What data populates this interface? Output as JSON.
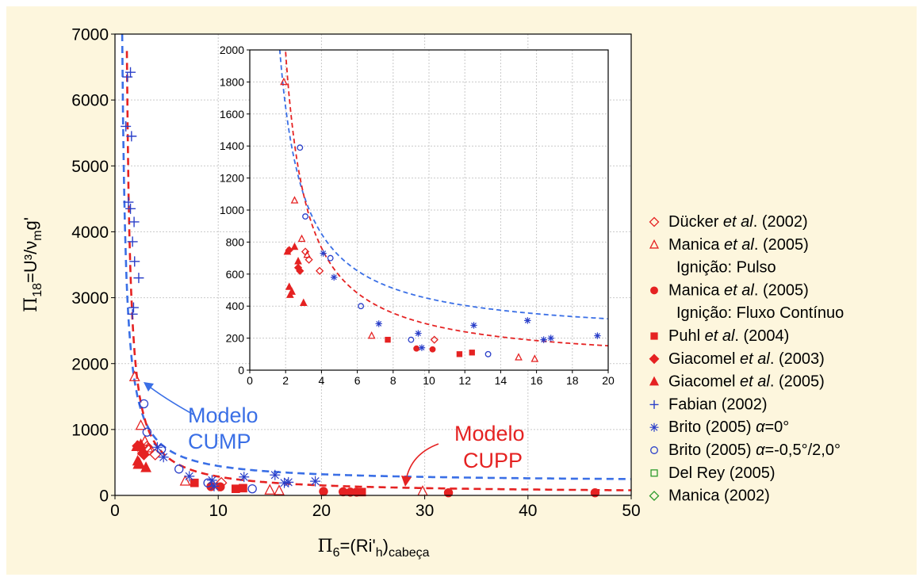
{
  "chart_data": {
    "type": "scatter",
    "main": {
      "xlim": [
        0,
        50
      ],
      "ylim": [
        0,
        7000
      ],
      "xticks": [
        "0",
        "10",
        "20",
        "30",
        "40",
        "50"
      ],
      "yticks": [
        "0",
        "1000",
        "2000",
        "3000",
        "4000",
        "5000",
        "6000",
        "7000"
      ],
      "grid": true
    },
    "inset": {
      "xlim": [
        0,
        20
      ],
      "ylim": [
        0,
        2000
      ],
      "xticks": [
        "0",
        "2",
        "4",
        "6",
        "8",
        "10",
        "12",
        "14",
        "16",
        "18",
        "20"
      ],
      "yticks": [
        "0",
        "200",
        "400",
        "600",
        "800",
        "1000",
        "1200",
        "1400",
        "1600",
        "1800",
        "2000"
      ],
      "grid": true
    },
    "ylabel": {
      "pi": "Π",
      "sub": "18",
      "eq": "=U³/ν",
      "sub2": "m",
      "tail": "g'"
    },
    "xlabel": {
      "pi": "Π",
      "sub": "6",
      "eq": "=(Ri'",
      "sub2": "h",
      "close": ")",
      "sub3": "cabeça"
    },
    "models": [
      {
        "name_line1": "Modelo",
        "name_line2": "CUMP",
        "color": "#3a6fe6",
        "a": 200,
        "k": 2380,
        "b": 0.35
      },
      {
        "name_line1": "Modelo",
        "name_line2": "CUPP",
        "color": "#e52222",
        "a": 30,
        "k": 2350,
        "b": 0.8
      }
    ],
    "legend": [
      {
        "pre": "Dücker ",
        "it": "et al",
        "post": ". (2002)",
        "marker": "diamond-open",
        "color": "#e52222"
      },
      {
        "pre": "Manica ",
        "it": "et al",
        "post": ". (2005)",
        "marker": "triangle-open",
        "color": "#e52222"
      },
      {
        "pre": "Ignição: Pulso",
        "it": "",
        "post": "",
        "marker": "none",
        "color": "#e52222"
      },
      {
        "pre": "Manica ",
        "it": "et al",
        "post": ". (2005)",
        "marker": "circle-filled",
        "color": "#e52222"
      },
      {
        "pre": "Ignição: Fluxo Contínuo",
        "it": "",
        "post": "",
        "marker": "none",
        "color": "#e52222"
      },
      {
        "pre": "Puhl ",
        "it": "et al",
        "post": ". (2004)",
        "marker": "square-filled",
        "color": "#e52222"
      },
      {
        "pre": "Giacomel ",
        "it": "et al",
        "post": ". (2003)",
        "marker": "diamond-filled",
        "color": "#e52222"
      },
      {
        "pre": "Giacomel ",
        "it": "et al",
        "post": ". (2005)",
        "marker": "triangle-filled",
        "color": "#e52222"
      },
      {
        "pre": "Fabian (2002)",
        "it": "",
        "post": "",
        "marker": "plus",
        "color": "#2a3fc9"
      },
      {
        "pre": "Brito (2005) ",
        "it": "α",
        "post": "=0°",
        "marker": "asterisk",
        "color": "#2a3fc9"
      },
      {
        "pre": "Brito (2005) ",
        "it": "α",
        "post": "=-0,5°/2,0°",
        "marker": "circle-open",
        "color": "#2a3fc9"
      },
      {
        "pre": "Del Rey (2005)",
        "it": "",
        "post": "",
        "marker": "square-open",
        "color": "#2a9a2a"
      },
      {
        "pre": "Manica (2002)",
        "it": "",
        "post": "",
        "marker": "diamond-open",
        "color": "#2a9a2a"
      }
    ],
    "series": [
      {
        "name": "Dücker et al. (2002)",
        "marker": "diamond-open",
        "color": "#e52222",
        "points": [
          [
            3.1,
            740
          ],
          [
            3.3,
            690
          ],
          [
            3.9,
            620
          ],
          [
            10.3,
            190
          ]
        ]
      },
      {
        "name": "Manica et al. (2005) Ignição: Pulso",
        "marker": "triangle-open",
        "color": "#e52222",
        "points": [
          [
            1.9,
            1800
          ],
          [
            2.5,
            1060
          ],
          [
            2.9,
            820
          ],
          [
            3.2,
            720
          ],
          [
            6.8,
            215
          ],
          [
            15,
            80
          ],
          [
            15.9,
            70
          ],
          [
            29.8,
            60
          ]
        ]
      },
      {
        "name": "Manica et al. (2005) Ignição: Fluxo Contínuo",
        "marker": "circle-filled",
        "color": "#e52222",
        "points": [
          [
            9.3,
            135
          ],
          [
            10.2,
            130
          ],
          [
            20.2,
            60
          ],
          [
            22.1,
            55
          ],
          [
            22.8,
            50
          ],
          [
            23.4,
            50
          ],
          [
            32.3,
            40
          ],
          [
            46.5,
            40
          ]
        ]
      },
      {
        "name": "Puhl et al. (2004)",
        "marker": "square-filled",
        "color": "#e52222",
        "points": [
          [
            7.7,
            190
          ],
          [
            11.7,
            100
          ],
          [
            12.4,
            110
          ],
          [
            23.9,
            50
          ]
        ]
      },
      {
        "name": "Giacomel et al. (2003)",
        "marker": "diamond-filled",
        "color": "#e52222",
        "points": [
          [
            2.2,
            750
          ],
          [
            2.7,
            640
          ],
          [
            2.8,
            620
          ]
        ]
      },
      {
        "name": "Giacomel et al. (2005)",
        "marker": "triangle-filled",
        "color": "#e52222",
        "points": [
          [
            2.1,
            740
          ],
          [
            2.2,
            520
          ],
          [
            2.25,
            470
          ],
          [
            2.35,
            490
          ],
          [
            2.5,
            770
          ],
          [
            2.7,
            680
          ],
          [
            3.0,
            420
          ]
        ]
      },
      {
        "name": "Fabian (2002)",
        "marker": "plus",
        "color": "#2a3fc9",
        "points": [
          [
            1.05,
            5600
          ],
          [
            1.2,
            6350
          ],
          [
            1.5,
            6420
          ],
          [
            1.6,
            5450
          ],
          [
            1.3,
            4450
          ],
          [
            1.5,
            4350
          ],
          [
            1.85,
            4150
          ],
          [
            1.7,
            3850
          ],
          [
            1.9,
            3550
          ],
          [
            2.3,
            3300
          ],
          [
            1.8,
            2850
          ],
          [
            1.7,
            2750
          ]
        ]
      },
      {
        "name": "Brito (2005) α=0°",
        "marker": "asterisk",
        "color": "#2a3fc9",
        "points": [
          [
            4.1,
            730
          ],
          [
            4.7,
            580
          ],
          [
            7.2,
            290
          ],
          [
            9.4,
            230
          ],
          [
            9.6,
            140
          ],
          [
            12.5,
            280
          ],
          [
            15.5,
            310
          ],
          [
            16.4,
            190
          ],
          [
            16.8,
            200
          ],
          [
            19.4,
            215
          ]
        ]
      },
      {
        "name": "Brito (2005) α=-0,5°/2,0°",
        "marker": "circle-open",
        "color": "#2a3fc9",
        "points": [
          [
            2.8,
            1390
          ],
          [
            3.1,
            960
          ],
          [
            4.5,
            700
          ],
          [
            6.2,
            400
          ],
          [
            9.0,
            190
          ],
          [
            13.3,
            100
          ]
        ]
      }
    ]
  }
}
